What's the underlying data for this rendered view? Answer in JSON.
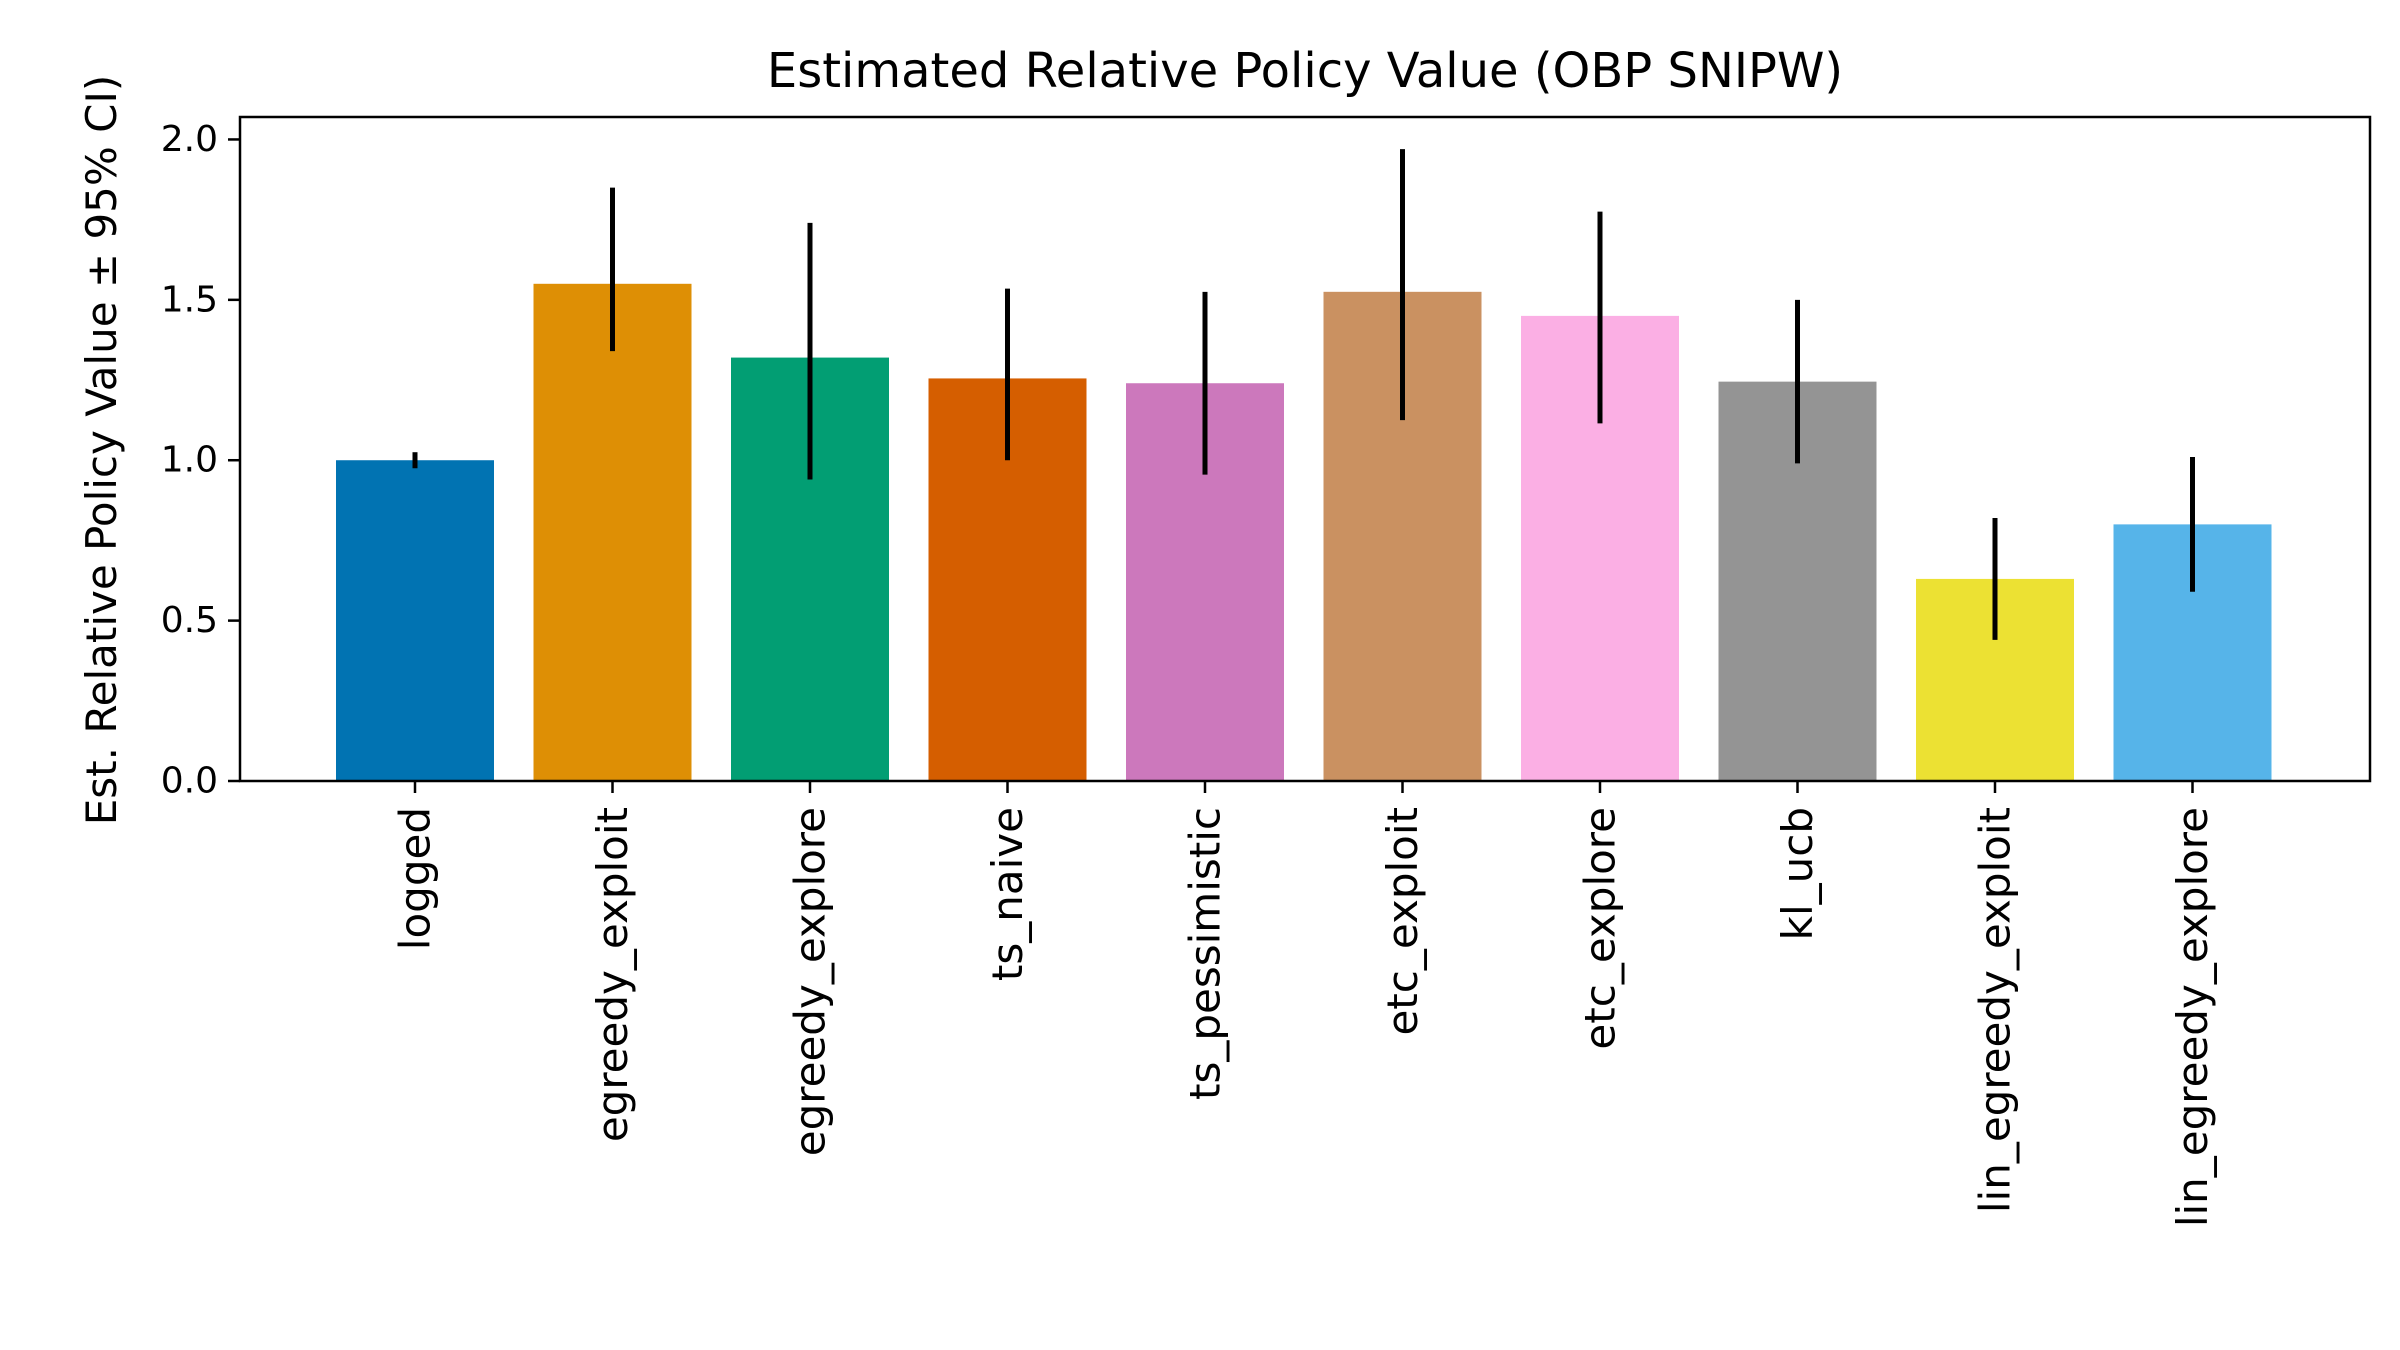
{
  "chart_data": {
    "type": "bar",
    "title": "Estimated Relative Policy Value (OBP SNIPW)",
    "xlabel": "",
    "ylabel": "Est. Relative Policy Value ± 95% CI)",
    "ylim": [
      0,
      2.07
    ],
    "yticks": [
      "0.0",
      "0.5",
      "1.0",
      "1.5",
      "2.0"
    ],
    "grid": false,
    "categories": [
      "logged",
      "egreedy_exploit",
      "egreedy_explore",
      "ts_naive",
      "ts_pessimistic",
      "etc_exploit",
      "etc_explore",
      "kl_ucb",
      "lin_egreedy_exploit",
      "lin_egreedy_explore"
    ],
    "values": [
      1.0,
      1.55,
      1.32,
      1.255,
      1.24,
      1.525,
      1.45,
      1.245,
      0.63,
      0.8
    ],
    "ci_lower": [
      0.975,
      1.34,
      0.94,
      1.0,
      0.955,
      1.125,
      1.115,
      0.99,
      0.44,
      0.59
    ],
    "ci_upper": [
      1.025,
      1.85,
      1.74,
      1.535,
      1.525,
      1.97,
      1.775,
      1.5,
      0.82,
      1.01
    ],
    "colors": [
      "#0173b2",
      "#de8f05",
      "#029e73",
      "#d55e00",
      "#cc78bc",
      "#ca9161",
      "#fbafe4",
      "#949494",
      "#ece133",
      "#56b4e9"
    ]
  }
}
